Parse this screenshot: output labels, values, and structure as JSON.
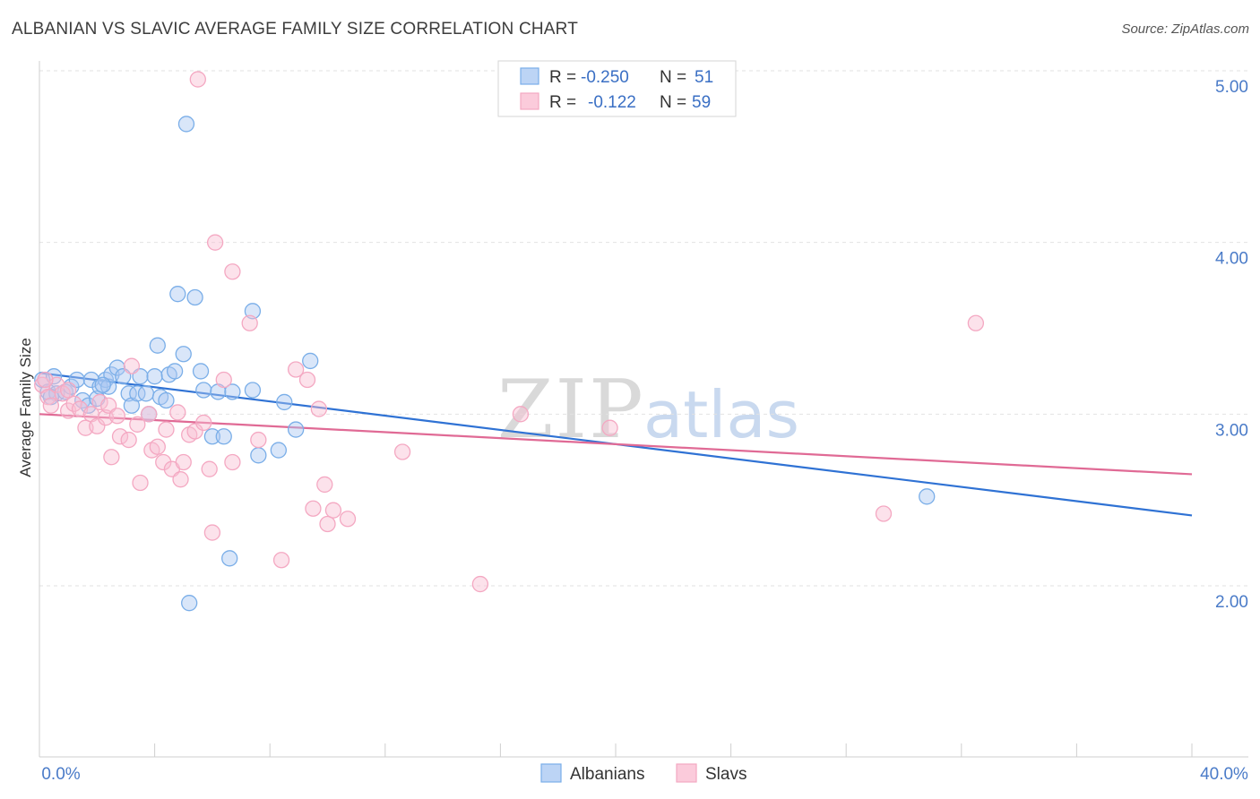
{
  "title": "ALBANIAN VS SLAVIC AVERAGE FAMILY SIZE CORRELATION CHART",
  "source": "Source: ZipAtlas.com",
  "watermark": {
    "part1": "ZIP",
    "part2": "atlas"
  },
  "legend": {
    "rows": [
      {
        "r_label": "R =",
        "r_value": "-0.250",
        "n_label": "N =",
        "n_value": "51"
      },
      {
        "r_label": "R =",
        "r_value": "-0.122",
        "n_label": "N =",
        "n_value": "59"
      }
    ]
  },
  "chart_data": {
    "type": "scatter",
    "title": "ALBANIAN VS SLAVIC AVERAGE FAMILY SIZE CORRELATION CHART",
    "xlabel": "",
    "ylabel": "Average Family Size",
    "xlim": [
      0,
      40
    ],
    "ylim": [
      1.0,
      5.1
    ],
    "x_tick_labels": [
      "0.0%",
      "40.0%"
    ],
    "y_ticks": [
      2.0,
      3.0,
      4.0,
      5.0
    ],
    "y_tick_labels": [
      "2.00",
      "3.00",
      "4.00",
      "5.00"
    ],
    "grid": true,
    "legend_position": "top-center",
    "series": [
      {
        "name": "Albanians",
        "color": "#7aaee8",
        "line_color": "#2f72d4",
        "trend": {
          "x": [
            0,
            40
          ],
          "y": [
            3.24,
            2.41
          ]
        },
        "points": [
          [
            0.1,
            3.2
          ],
          [
            0.3,
            3.13
          ],
          [
            0.5,
            3.22
          ],
          [
            0.6,
            3.12
          ],
          [
            0.9,
            3.13
          ],
          [
            1.1,
            3.16
          ],
          [
            1.3,
            3.2
          ],
          [
            1.5,
            3.08
          ],
          [
            1.7,
            3.05
          ],
          [
            1.8,
            3.2
          ],
          [
            2.0,
            3.09
          ],
          [
            2.1,
            3.16
          ],
          [
            2.3,
            3.2
          ],
          [
            2.4,
            3.16
          ],
          [
            2.5,
            3.23
          ],
          [
            2.7,
            3.27
          ],
          [
            2.9,
            3.22
          ],
          [
            3.1,
            3.12
          ],
          [
            3.2,
            3.05
          ],
          [
            3.4,
            3.12
          ],
          [
            3.5,
            3.22
          ],
          [
            3.7,
            3.12
          ],
          [
            3.8,
            3.0
          ],
          [
            4.0,
            3.22
          ],
          [
            4.1,
            3.4
          ],
          [
            4.2,
            3.1
          ],
          [
            4.4,
            3.08
          ],
          [
            4.5,
            3.23
          ],
          [
            4.7,
            3.25
          ],
          [
            4.8,
            3.7
          ],
          [
            5.0,
            3.35
          ],
          [
            5.1,
            4.69
          ],
          [
            5.2,
            1.9
          ],
          [
            5.4,
            3.68
          ],
          [
            5.6,
            3.25
          ],
          [
            5.7,
            3.14
          ],
          [
            6.0,
            2.87
          ],
          [
            6.2,
            3.13
          ],
          [
            6.4,
            2.87
          ],
          [
            6.6,
            2.16
          ],
          [
            6.7,
            3.13
          ],
          [
            7.4,
            3.14
          ],
          [
            7.4,
            3.6
          ],
          [
            7.6,
            2.76
          ],
          [
            8.3,
            2.79
          ],
          [
            8.5,
            3.07
          ],
          [
            8.9,
            2.91
          ],
          [
            9.4,
            3.31
          ],
          [
            30.8,
            2.52
          ],
          [
            0.4,
            3.1
          ],
          [
            2.2,
            3.17
          ]
        ]
      },
      {
        "name": "Slavs",
        "color": "#f4a8c2",
        "line_color": "#e06a95",
        "trend": {
          "x": [
            0,
            40
          ],
          "y": [
            3.0,
            2.65
          ]
        },
        "points": [
          [
            0.1,
            3.17
          ],
          [
            0.3,
            3.1
          ],
          [
            0.4,
            3.05
          ],
          [
            0.6,
            3.17
          ],
          [
            0.8,
            3.12
          ],
          [
            1.0,
            3.02
          ],
          [
            1.2,
            3.06
          ],
          [
            1.4,
            3.03
          ],
          [
            1.6,
            2.92
          ],
          [
            1.8,
            3.0
          ],
          [
            2.0,
            2.93
          ],
          [
            2.1,
            3.07
          ],
          [
            2.3,
            2.98
          ],
          [
            2.4,
            3.05
          ],
          [
            2.5,
            2.75
          ],
          [
            2.7,
            2.99
          ],
          [
            2.8,
            2.87
          ],
          [
            3.1,
            2.85
          ],
          [
            3.2,
            3.28
          ],
          [
            3.4,
            2.94
          ],
          [
            3.5,
            2.6
          ],
          [
            3.8,
            3.0
          ],
          [
            3.9,
            2.79
          ],
          [
            4.1,
            2.81
          ],
          [
            4.3,
            2.72
          ],
          [
            4.4,
            2.91
          ],
          [
            4.6,
            2.68
          ],
          [
            4.8,
            3.01
          ],
          [
            4.9,
            2.62
          ],
          [
            5.0,
            2.72
          ],
          [
            5.2,
            2.88
          ],
          [
            5.4,
            2.9
          ],
          [
            5.5,
            4.95
          ],
          [
            5.7,
            2.95
          ],
          [
            5.9,
            2.68
          ],
          [
            6.0,
            2.31
          ],
          [
            6.1,
            4.0
          ],
          [
            6.4,
            3.2
          ],
          [
            6.7,
            2.72
          ],
          [
            6.7,
            3.83
          ],
          [
            7.3,
            3.53
          ],
          [
            7.6,
            2.85
          ],
          [
            8.4,
            2.15
          ],
          [
            8.9,
            3.26
          ],
          [
            9.3,
            3.2
          ],
          [
            9.5,
            2.45
          ],
          [
            9.7,
            3.03
          ],
          [
            9.9,
            2.59
          ],
          [
            10.0,
            2.36
          ],
          [
            10.2,
            2.44
          ],
          [
            10.7,
            2.39
          ],
          [
            12.6,
            2.78
          ],
          [
            15.3,
            2.01
          ],
          [
            16.7,
            3.0
          ],
          [
            19.8,
            2.92
          ],
          [
            29.3,
            2.42
          ],
          [
            32.5,
            3.53
          ],
          [
            0.2,
            3.2
          ],
          [
            1.0,
            3.14
          ]
        ]
      }
    ]
  }
}
